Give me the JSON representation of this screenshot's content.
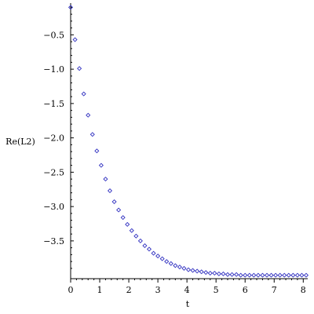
{
  "chart_data": {
    "type": "scatter",
    "title": "",
    "xlabel": "t",
    "ylabel": "Re(L2)",
    "xlim": [
      0,
      8.1
    ],
    "ylim": [
      -4.05,
      -0.05
    ],
    "xticks": [
      0,
      1,
      2,
      3,
      4,
      5,
      6,
      7,
      8
    ],
    "xtick_labels": [
      "0",
      "1",
      "2",
      "3",
      "4",
      "5",
      "6",
      "7",
      "8"
    ],
    "yticks": [
      -0.5,
      -1.0,
      -1.5,
      -2.0,
      -2.5,
      -3.0,
      -3.5
    ],
    "ytick_labels": [
      "−0.5",
      "−1.0",
      "−1.5",
      "−2.0",
      "−2.5",
      "−3.0",
      "−3.5"
    ],
    "grid": false,
    "marker": "diamond",
    "marker_color": "#3030c0",
    "series": [
      {
        "x": [
          0.0,
          0.15,
          0.3,
          0.45,
          0.6,
          0.75,
          0.9,
          1.05,
          1.2,
          1.35,
          1.5,
          1.65,
          1.8,
          1.95,
          2.1,
          2.25,
          2.4,
          2.55,
          2.7,
          2.85,
          3.0,
          3.15,
          3.3,
          3.45,
          3.6,
          3.75,
          3.9,
          4.05,
          4.2,
          4.35,
          4.5,
          4.65,
          4.8,
          4.95,
          5.1,
          5.25,
          5.4,
          5.55,
          5.7,
          5.85,
          6.0,
          6.15,
          6.3,
          6.45,
          6.6,
          6.75,
          6.9,
          7.05,
          7.2,
          7.35,
          7.5,
          7.65,
          7.8,
          7.95,
          8.1
        ],
        "y": [
          -0.1,
          -0.57,
          -0.99,
          -1.36,
          -1.67,
          -1.95,
          -2.19,
          -2.4,
          -2.6,
          -2.77,
          -2.93,
          -3.05,
          -3.16,
          -3.26,
          -3.35,
          -3.43,
          -3.5,
          -3.57,
          -3.62,
          -3.68,
          -3.72,
          -3.76,
          -3.8,
          -3.83,
          -3.86,
          -3.88,
          -3.9,
          -3.92,
          -3.93,
          -3.94,
          -3.95,
          -3.96,
          -3.97,
          -3.97,
          -3.98,
          -3.98,
          -3.99,
          -3.99,
          -3.99,
          -4.0,
          -4.0,
          -4.0,
          -4.0,
          -4.0,
          -4.0,
          -4.0,
          -4.0,
          -4.0,
          -4.0,
          -4.0,
          -4.0,
          -4.0,
          -4.0,
          -4.0,
          -4.0
        ]
      }
    ]
  }
}
